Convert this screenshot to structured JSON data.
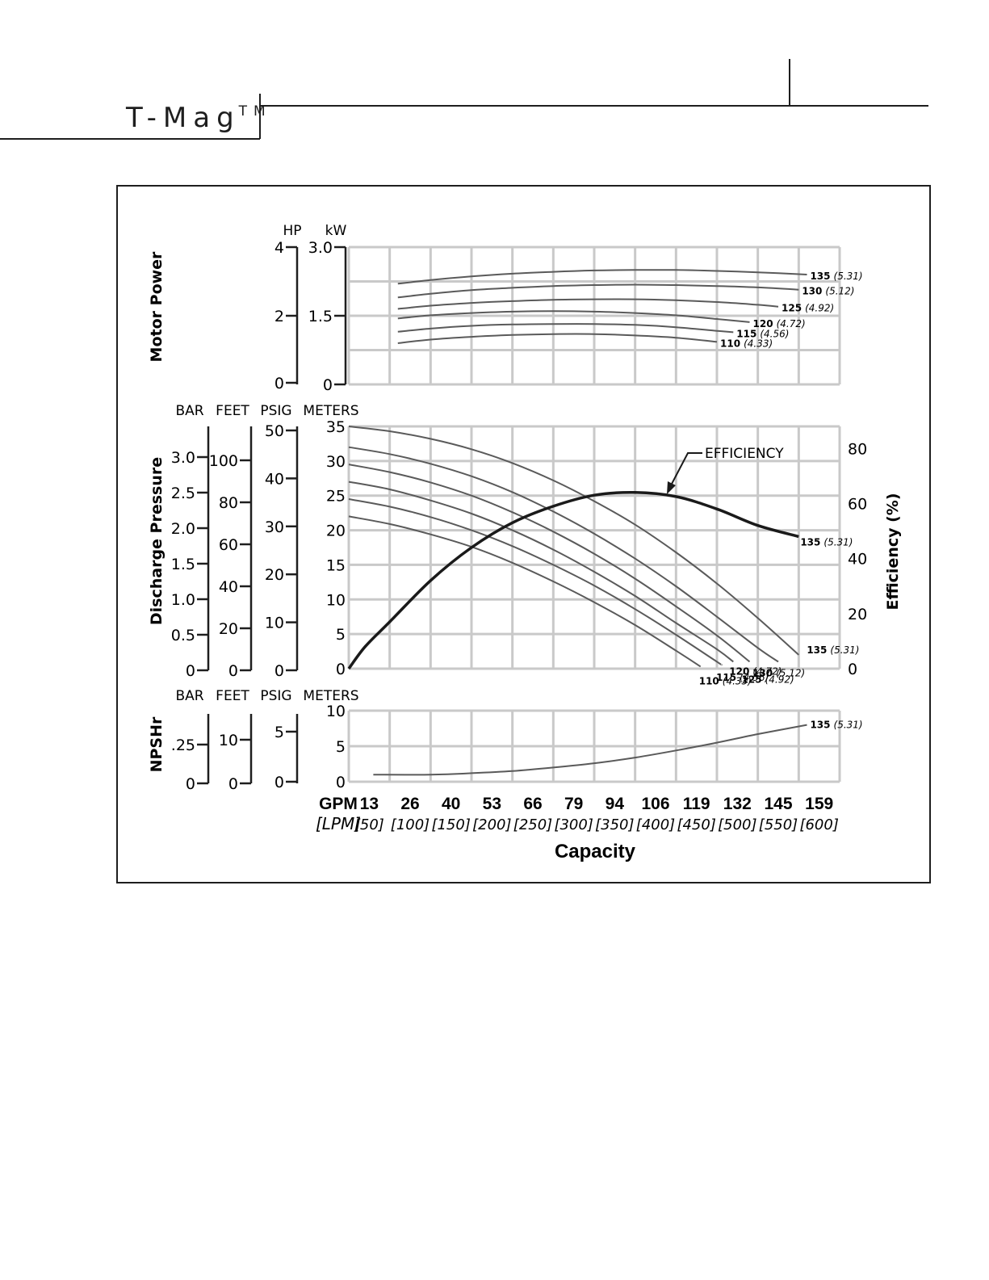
{
  "header": {
    "brand": "T-Mag",
    "trademark": "TM"
  },
  "colors": {
    "grid": "#c9c9c9",
    "curve": "#5a5a5a",
    "efficiency": "#1a1a1a",
    "frame": "#1e1e1e"
  },
  "chart_data": {
    "type": "line",
    "title": "",
    "xlabel": "Capacity",
    "x_unit_primary": "GPM",
    "x_unit_secondary": "[LPM]",
    "x_ticks_gpm": [
      "13",
      "26",
      "40",
      "53",
      "66",
      "79",
      "94",
      "106",
      "119",
      "132",
      "145",
      "159"
    ],
    "x_ticks_lpm": [
      "[50]",
      "[100]",
      "[150]",
      "[200]",
      "[250]",
      "[300]",
      "[350]",
      "[400]",
      "[450]",
      "[500]",
      "[550]",
      "[600]"
    ],
    "xlim_lpm": [
      0,
      600
    ],
    "panels": {
      "power": {
        "ylabel": "Motor Power",
        "unit_left": "HP",
        "unit_right": "kW",
        "ticks_left": [
          "4",
          "2",
          "0"
        ],
        "ticks_right": [
          "3.0",
          "1.5",
          "0"
        ],
        "ylim_kw": [
          0,
          3.0
        ],
        "series": [
          {
            "name": "135",
            "label": "(5.31)",
            "x": [
              60,
              100,
              150,
              200,
              250,
              300,
              350,
              400,
              450,
              500,
              560
            ],
            "y": [
              2.2,
              2.28,
              2.36,
              2.42,
              2.46,
              2.49,
              2.5,
              2.5,
              2.48,
              2.45,
              2.4
            ]
          },
          {
            "name": "130",
            "label": "(5.12)",
            "x": [
              60,
              100,
              150,
              200,
              250,
              300,
              350,
              400,
              450,
              500,
              550
            ],
            "y": [
              1.9,
              1.98,
              2.06,
              2.11,
              2.15,
              2.17,
              2.18,
              2.17,
              2.15,
              2.12,
              2.07
            ]
          },
          {
            "name": "125",
            "label": "(4.92)",
            "x": [
              60,
              100,
              150,
              200,
              250,
              300,
              350,
              400,
              450,
              500,
              525
            ],
            "y": [
              1.65,
              1.72,
              1.78,
              1.82,
              1.85,
              1.86,
              1.86,
              1.84,
              1.8,
              1.74,
              1.7
            ]
          },
          {
            "name": "120",
            "label": "(4.72)",
            "x": [
              60,
              100,
              150,
              200,
              250,
              300,
              350,
              400,
              450,
              490
            ],
            "y": [
              1.44,
              1.51,
              1.56,
              1.59,
              1.6,
              1.59,
              1.56,
              1.51,
              1.43,
              1.36
            ]
          },
          {
            "name": "115",
            "label": "(4.56)",
            "x": [
              60,
              100,
              150,
              200,
              250,
              300,
              350,
              400,
              450,
              470
            ],
            "y": [
              1.15,
              1.22,
              1.28,
              1.31,
              1.32,
              1.32,
              1.3,
              1.25,
              1.17,
              1.14
            ]
          },
          {
            "name": "110",
            "label": "(4.33)",
            "x": [
              60,
              100,
              150,
              200,
              250,
              300,
              350,
              400,
              450
            ],
            "y": [
              0.9,
              0.98,
              1.04,
              1.08,
              1.1,
              1.1,
              1.07,
              1.02,
              0.93
            ]
          }
        ]
      },
      "pressure": {
        "ylabel": "Discharge Pressure",
        "unit_headers": [
          "BAR",
          "FEET",
          "PSIG",
          "METERS"
        ],
        "ticks_bar": [
          "3.0",
          "2.5",
          "2.0",
          "1.5",
          "1.0",
          "0.5",
          "0"
        ],
        "ticks_feet": [
          "100",
          "80",
          "60",
          "40",
          "20",
          "0"
        ],
        "ticks_psig": [
          "50",
          "40",
          "30",
          "20",
          "10",
          "0"
        ],
        "ticks_meters": [
          "35",
          "30",
          "25",
          "20",
          "15",
          "10",
          "5",
          "0"
        ],
        "ylim_meters": [
          0,
          35
        ],
        "series": [
          {
            "name": "135",
            "label": "(5.31)",
            "x": [
              0,
              50,
              100,
              150,
              200,
              250,
              300,
              350,
              400,
              450,
              500,
              550
            ],
            "y": [
              35.0,
              34.3,
              33.2,
              31.7,
              29.7,
              27.2,
              24.2,
              20.8,
              16.8,
              12.3,
              7.3,
              2.0
            ]
          },
          {
            "name": "130",
            "label": "(5.12)",
            "x": [
              0,
              50,
              100,
              150,
              200,
              250,
              300,
              350,
              400,
              450,
              500,
              525
            ],
            "y": [
              32.0,
              31.0,
              29.6,
              27.8,
              25.5,
              22.7,
              19.5,
              15.9,
              11.9,
              7.5,
              3.0,
              1.0
            ]
          },
          {
            "name": "125",
            "label": "(4.92)",
            "x": [
              0,
              50,
              100,
              150,
              200,
              250,
              300,
              350,
              400,
              450,
              490
            ],
            "y": [
              29.5,
              28.4,
              26.9,
              25.0,
              22.6,
              19.8,
              16.6,
              13.0,
              9.0,
              4.8,
              1.0
            ]
          },
          {
            "name": "120",
            "label": "(4.72)",
            "x": [
              0,
              50,
              100,
              150,
              200,
              250,
              300,
              350,
              400,
              450,
              470
            ],
            "y": [
              27.0,
              25.9,
              24.3,
              22.4,
              20.0,
              17.2,
              14.0,
              10.5,
              6.6,
              2.8,
              1.0
            ]
          },
          {
            "name": "115",
            "label": "(4.56)",
            "x": [
              0,
              50,
              100,
              150,
              200,
              250,
              300,
              350,
              400,
              450,
              455
            ],
            "y": [
              24.5,
              23.4,
              21.9,
              20.0,
              17.7,
              15.0,
              12.0,
              8.6,
              4.9,
              1.0,
              0.6
            ]
          },
          {
            "name": "110",
            "label": "(4.33)",
            "x": [
              0,
              50,
              100,
              150,
              200,
              250,
              300,
              350,
              400,
              430
            ],
            "y": [
              22.0,
              20.9,
              19.4,
              17.6,
              15.3,
              12.6,
              9.6,
              6.3,
              2.6,
              0.3
            ]
          }
        ]
      },
      "efficiency": {
        "ylabel": "Efficiency (%)",
        "annotation": "EFFICIENCY",
        "ticks": [
          "80",
          "60",
          "40",
          "20",
          "0"
        ],
        "ylim": [
          0,
          88
        ],
        "series": [
          {
            "name": "135",
            "label": "(5.31)",
            "x": [
              0,
              20,
              50,
              100,
              150,
              200,
              250,
              300,
              350,
              400,
              450,
              500,
              550
            ],
            "y": [
              0,
              8,
              17,
              32,
              44,
              53,
              59,
              63,
              64,
              62.5,
              58,
              52,
              48
            ]
          }
        ]
      },
      "npshr": {
        "ylabel": "NPSHr",
        "unit_headers": [
          "BAR",
          "FEET",
          "PSIG",
          "METERS"
        ],
        "ticks_bar": [
          ".25",
          "0"
        ],
        "ticks_feet": [
          "10",
          "0"
        ],
        "ticks_psig": [
          "5",
          "0"
        ],
        "ticks_meters": [
          "10",
          "5",
          "0"
        ],
        "ylim_meters": [
          0,
          10
        ],
        "series": [
          {
            "name": "135",
            "label": "(5.31)",
            "x": [
              30,
              100,
              150,
              200,
              250,
              300,
              350,
              400,
              450,
              500,
              560
            ],
            "y": [
              1.0,
              1.0,
              1.2,
              1.5,
              2.0,
              2.6,
              3.4,
              4.4,
              5.5,
              6.7,
              8.0
            ]
          }
        ]
      }
    }
  }
}
